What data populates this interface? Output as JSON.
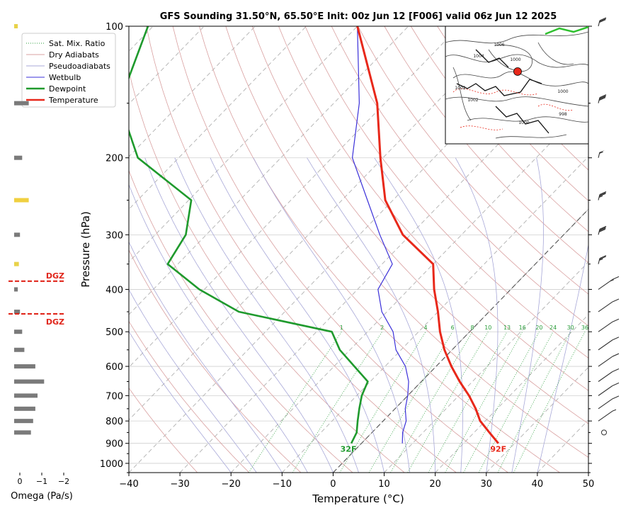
{
  "title": "GFS Sounding 31.50°N, 65.50°E Init: 00z Jun 12 [F006] valid 06z Jun 12 2025",
  "colors": {
    "temperature": "#e8281a",
    "dewpoint": "#1f9a2d",
    "wetbulb": "#3b30d9",
    "dry_adiabat": "#d9a0a0",
    "pseudoadiabat": "#a8a8d8",
    "mixing_ratio": "#2a9d3a",
    "isotherm": "#b0b0b0",
    "dgz": "#e0261b",
    "omega_bar": "#7a7a7a"
  },
  "legend": {
    "placement": "top-left",
    "items": [
      {
        "label": "Sat. Mix. Ratio",
        "style": "dotted",
        "color": "#2a9d3a"
      },
      {
        "label": "Dry Adiabats",
        "style": "solid-thin",
        "color": "#d9a0a0"
      },
      {
        "label": "Pseudoadiabats",
        "style": "solid-thin",
        "color": "#a8a8d8"
      },
      {
        "label": "Wetbulb",
        "style": "solid-thin",
        "color": "#3b30d9"
      },
      {
        "label": "Dewpoint",
        "style": "solid-thick",
        "color": "#1f9a2d"
      },
      {
        "label": "Temperature",
        "style": "solid-thick",
        "color": "#e8281a"
      }
    ]
  },
  "omega_panel": {
    "xlabel": "Omega (Pa/s)",
    "ticks": [
      {
        "value": 0,
        "label": "0"
      },
      {
        "value": -1,
        "label": "−1"
      },
      {
        "value": -2,
        "label": "−2"
      }
    ],
    "dgz_label": "DGZ",
    "dgz_levels_hpa": [
      383,
      455
    ],
    "bars": [
      {
        "p": 100,
        "omega": -0.1,
        "color": "#e8d24a"
      },
      {
        "p": 150,
        "omega": -0.6,
        "color": "#7a7a7a"
      },
      {
        "p": 200,
        "omega": -0.3,
        "color": "#7a7a7a"
      },
      {
        "p": 250,
        "omega": -0.6,
        "color": "#f0d040"
      },
      {
        "p": 300,
        "omega": -0.2,
        "color": "#7a7a7a"
      },
      {
        "p": 350,
        "omega": -0.15,
        "color": "#e8d24a"
      },
      {
        "p": 400,
        "omega": -0.1,
        "color": "#7a7a7a"
      },
      {
        "p": 450,
        "omega": -0.2,
        "color": "#7a7a7a"
      },
      {
        "p": 500,
        "omega": -0.3,
        "color": "#7a7a7a"
      },
      {
        "p": 550,
        "omega": -0.4,
        "color": "#7a7a7a"
      },
      {
        "p": 600,
        "omega": -0.9,
        "color": "#7a7a7a"
      },
      {
        "p": 650,
        "omega": -1.3,
        "color": "#7a7a7a"
      },
      {
        "p": 700,
        "omega": -1.0,
        "color": "#7a7a7a"
      },
      {
        "p": 750,
        "omega": -0.9,
        "color": "#7a7a7a"
      },
      {
        "p": 800,
        "omega": -0.8,
        "color": "#7a7a7a"
      },
      {
        "p": 850,
        "omega": -0.7,
        "color": "#7a7a7a"
      }
    ]
  },
  "chart_data": {
    "type": "line",
    "subtype": "skew-t",
    "xlabel": "Temperature (°C)",
    "ylabel": "Pressure (hPa)",
    "xlim": [
      -40,
      50
    ],
    "ylim": [
      1050,
      100
    ],
    "y_scale": "log",
    "grid": true,
    "x_ticks": [
      -40,
      -30,
      -20,
      -10,
      0,
      10,
      20,
      30,
      40,
      50
    ],
    "x_tick_labels": [
      "−40",
      "−30",
      "−20",
      "−10",
      "0",
      "10",
      "20",
      "30",
      "40",
      "50"
    ],
    "y_ticks": [
      100,
      200,
      300,
      400,
      500,
      600,
      700,
      800,
      900,
      1000
    ],
    "mixing_ratio_labels": [
      "1",
      "2",
      "4",
      "6",
      "8",
      "10",
      "13",
      "16",
      "20",
      "24",
      "30",
      "36"
    ],
    "mixing_ratio_values": [
      1,
      2,
      4,
      6,
      8,
      10,
      13,
      16,
      20,
      24,
      30,
      36
    ],
    "series": [
      {
        "name": "Temperature",
        "points": [
          {
            "p": 900,
            "t": 26.8
          },
          {
            "p": 850,
            "t": 23.0
          },
          {
            "p": 800,
            "t": 19.0
          },
          {
            "p": 750,
            "t": 15.8
          },
          {
            "p": 700,
            "t": 12.0
          },
          {
            "p": 650,
            "t": 7.5
          },
          {
            "p": 600,
            "t": 3.0
          },
          {
            "p": 550,
            "t": -1.5
          },
          {
            "p": 500,
            "t": -5.8
          },
          {
            "p": 450,
            "t": -10.0
          },
          {
            "p": 400,
            "t": -15.0
          },
          {
            "p": 350,
            "t": -20.0
          },
          {
            "p": 300,
            "t": -31.5
          },
          {
            "p": 250,
            "t": -41.5
          },
          {
            "p": 200,
            "t": -50.5
          },
          {
            "p": 150,
            "t": -61.5
          },
          {
            "p": 100,
            "t": -80.0
          }
        ],
        "surface_label": "92F"
      },
      {
        "name": "Dewpoint",
        "points": [
          {
            "p": 900,
            "t": -2.0
          },
          {
            "p": 850,
            "t": -3.0
          },
          {
            "p": 800,
            "t": -5.0
          },
          {
            "p": 750,
            "t": -7.0
          },
          {
            "p": 700,
            "t": -9.0
          },
          {
            "p": 650,
            "t": -10.5
          },
          {
            "p": 600,
            "t": -16.0
          },
          {
            "p": 550,
            "t": -22.0
          },
          {
            "p": 500,
            "t": -27.0
          },
          {
            "p": 450,
            "t": -49.0
          },
          {
            "p": 400,
            "t": -61.0
          },
          {
            "p": 350,
            "t": -72.0
          },
          {
            "p": 300,
            "t": -74.0
          },
          {
            "p": 250,
            "t": -79.5
          },
          {
            "p": 200,
            "t": -98.0
          },
          {
            "p": 150,
            "t": -112.0
          },
          {
            "p": 100,
            "t": -121.0
          }
        ],
        "surface_label": "32F"
      },
      {
        "name": "Wetbulb",
        "points": [
          {
            "p": 900,
            "t": 8.0
          },
          {
            "p": 850,
            "t": 6.0
          },
          {
            "p": 800,
            "t": 4.5
          },
          {
            "p": 750,
            "t": 2.0
          },
          {
            "p": 700,
            "t": 0.0
          },
          {
            "p": 650,
            "t": -2.5
          },
          {
            "p": 600,
            "t": -6.0
          },
          {
            "p": 550,
            "t": -11.0
          },
          {
            "p": 500,
            "t": -15.0
          },
          {
            "p": 450,
            "t": -21.0
          },
          {
            "p": 400,
            "t": -26.0
          },
          {
            "p": 350,
            "t": -28.0
          },
          {
            "p": 300,
            "t": -36.0
          },
          {
            "p": 250,
            "t": -45.0
          },
          {
            "p": 200,
            "t": -56.0
          },
          {
            "p": 150,
            "t": -65.0
          },
          {
            "p": 100,
            "t": -80.0
          }
        ]
      }
    ]
  },
  "inset_map": {
    "isobar_labels": [
      "1006",
      "1004",
      "1000",
      "1002",
      "1000",
      "998",
      "1000",
      "1002"
    ]
  },
  "wind_barbs": [
    {
      "p": 100,
      "speed_kt": 30
    },
    {
      "p": 150,
      "speed_kt": 40
    },
    {
      "p": 200,
      "speed_kt": 55
    },
    {
      "p": 250,
      "speed_kt": 35
    },
    {
      "p": 300,
      "speed_kt": 40
    },
    {
      "p": 350,
      "speed_kt": 25
    },
    {
      "p": 400,
      "speed_kt": 15
    },
    {
      "p": 450,
      "speed_kt": 10
    },
    {
      "p": 500,
      "speed_kt": 10
    },
    {
      "p": 550,
      "speed_kt": 10
    },
    {
      "p": 600,
      "speed_kt": 10
    },
    {
      "p": 650,
      "speed_kt": 10
    },
    {
      "p": 700,
      "speed_kt": 10
    },
    {
      "p": 750,
      "speed_kt": 10
    },
    {
      "p": 800,
      "speed_kt": 5
    },
    {
      "p": 850,
      "speed_kt": 0
    }
  ]
}
